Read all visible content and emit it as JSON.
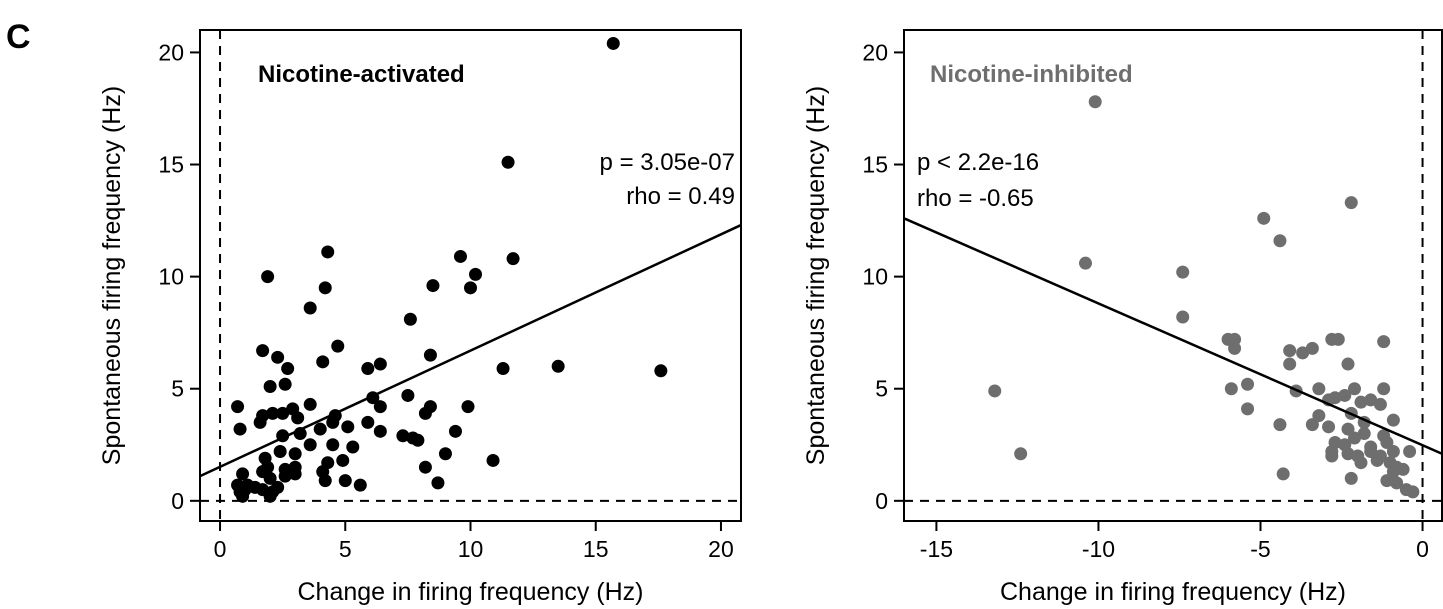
{
  "panel_label": "C",
  "chart_data": [
    {
      "type": "scatter",
      "title": "Nicotine-activated",
      "title_color": "#000000",
      "point_color": "#000000",
      "xlabel": "Change in firing frequency (Hz)",
      "ylabel": "Spontaneous firing frequency (Hz)",
      "xlim": [
        -0.8,
        20.8
      ],
      "ylim": [
        -0.9,
        21.0
      ],
      "xticks": [
        0,
        5,
        10,
        15,
        20
      ],
      "xtick_labels": [
        "0",
        "5",
        "10",
        "15",
        "20"
      ],
      "yticks": [
        0,
        5,
        10,
        15,
        20
      ],
      "ytick_labels": [
        "0",
        "5",
        "10",
        "15",
        "20"
      ],
      "reference_lines": {
        "x": 0,
        "y": 0,
        "style": "dashed"
      },
      "regression_line": {
        "x": [
          -0.8,
          20.8
        ],
        "y": [
          1.1,
          12.3
        ]
      },
      "stats": {
        "p": "p =  3.05e-07",
        "rho": "rho = 0.49"
      },
      "legend_position": "none",
      "grid": false,
      "points": [
        [
          15.7,
          20.4
        ],
        [
          11.5,
          15.1
        ],
        [
          4.3,
          11.1
        ],
        [
          9.6,
          10.9
        ],
        [
          10.2,
          10.1
        ],
        [
          11.7,
          10.8
        ],
        [
          1.9,
          10.0
        ],
        [
          4.2,
          9.5
        ],
        [
          8.5,
          9.6
        ],
        [
          10.0,
          9.5
        ],
        [
          3.6,
          8.6
        ],
        [
          7.6,
          8.1
        ],
        [
          4.7,
          6.9
        ],
        [
          1.7,
          6.7
        ],
        [
          2.3,
          6.4
        ],
        [
          4.1,
          6.2
        ],
        [
          6.4,
          6.1
        ],
        [
          8.4,
          6.5
        ],
        [
          11.3,
          5.9
        ],
        [
          13.5,
          6.0
        ],
        [
          17.6,
          5.8
        ],
        [
          2.7,
          5.9
        ],
        [
          5.9,
          5.9
        ],
        [
          2.0,
          5.1
        ],
        [
          2.6,
          5.2
        ],
        [
          6.1,
          4.6
        ],
        [
          7.5,
          4.7
        ],
        [
          0.7,
          4.2
        ],
        [
          1.7,
          3.8
        ],
        [
          2.9,
          4.1
        ],
        [
          3.6,
          4.3
        ],
        [
          4.6,
          3.8
        ],
        [
          6.4,
          4.2
        ],
        [
          8.4,
          4.2
        ],
        [
          9.9,
          4.2
        ],
        [
          0.8,
          3.2
        ],
        [
          1.6,
          3.5
        ],
        [
          2.1,
          3.9
        ],
        [
          2.5,
          3.9
        ],
        [
          3.1,
          3.7
        ],
        [
          4.0,
          3.2
        ],
        [
          4.5,
          3.5
        ],
        [
          5.1,
          3.3
        ],
        [
          5.9,
          3.5
        ],
        [
          8.2,
          3.9
        ],
        [
          7.3,
          2.9
        ],
        [
          7.7,
          2.8
        ],
        [
          9.4,
          3.1
        ],
        [
          2.5,
          2.9
        ],
        [
          3.2,
          3.0
        ],
        [
          3.6,
          2.5
        ],
        [
          4.5,
          2.5
        ],
        [
          5.3,
          2.4
        ],
        [
          6.4,
          3.1
        ],
        [
          7.9,
          2.7
        ],
        [
          1.8,
          1.9
        ],
        [
          2.4,
          2.2
        ],
        [
          3.0,
          2.1
        ],
        [
          4.3,
          1.7
        ],
        [
          4.9,
          1.8
        ],
        [
          9.0,
          2.1
        ],
        [
          10.9,
          1.8
        ],
        [
          1.9,
          1.5
        ],
        [
          2.6,
          1.4
        ],
        [
          3.0,
          1.5
        ],
        [
          4.1,
          1.3
        ],
        [
          8.2,
          1.5
        ],
        [
          0.9,
          1.2
        ],
        [
          1.7,
          1.3
        ],
        [
          2.0,
          1.0
        ],
        [
          2.6,
          1.1
        ],
        [
          3.0,
          1.2
        ],
        [
          4.2,
          0.9
        ],
        [
          5.0,
          0.9
        ],
        [
          5.6,
          0.7
        ],
        [
          8.7,
          0.8
        ],
        [
          0.7,
          0.7
        ],
        [
          1.1,
          0.7
        ],
        [
          1.4,
          0.6
        ],
        [
          1.7,
          0.5
        ],
        [
          2.3,
          0.6
        ],
        [
          0.8,
          0.4
        ],
        [
          1.0,
          0.5
        ],
        [
          2.1,
          0.4
        ],
        [
          0.9,
          0.2
        ],
        [
          2.0,
          0.2
        ]
      ]
    },
    {
      "type": "scatter",
      "title": "Nicotine-inhibited",
      "title_color": "#6e6e6e",
      "point_color": "#6e6e6e",
      "xlabel": "Change in firing frequency (Hz)",
      "ylabel": "Spontaneous firing frequency (Hz)",
      "xlim": [
        -16.0,
        0.6
      ],
      "ylim": [
        -0.9,
        21.0
      ],
      "xticks": [
        -15,
        -10,
        -5,
        0
      ],
      "xtick_labels": [
        "-15",
        "-10",
        "-5",
        "0"
      ],
      "yticks": [
        0,
        5,
        10,
        15,
        20
      ],
      "ytick_labels": [
        "0",
        "5",
        "10",
        "15",
        "20"
      ],
      "reference_lines": {
        "x": 0,
        "y": 0,
        "style": "dashed"
      },
      "regression_line": {
        "x": [
          -16.0,
          0.6
        ],
        "y": [
          12.6,
          2.1
        ]
      },
      "stats": {
        "p": "p < 2.2e-16",
        "rho": "rho = -0.65"
      },
      "legend_position": "none",
      "grid": false,
      "points": [
        [
          -10.1,
          17.8
        ],
        [
          -2.2,
          13.3
        ],
        [
          -4.9,
          12.6
        ],
        [
          -4.4,
          11.6
        ],
        [
          -10.4,
          10.6
        ],
        [
          -7.4,
          10.2
        ],
        [
          -7.4,
          8.2
        ],
        [
          -6.0,
          7.2
        ],
        [
          -5.8,
          7.2
        ],
        [
          -5.8,
          6.8
        ],
        [
          -4.1,
          6.7
        ],
        [
          -3.7,
          6.6
        ],
        [
          -3.4,
          6.8
        ],
        [
          -2.8,
          7.2
        ],
        [
          -2.6,
          7.2
        ],
        [
          -1.2,
          7.1
        ],
        [
          -4.1,
          6.1
        ],
        [
          -2.3,
          6.1
        ],
        [
          -5.4,
          5.2
        ],
        [
          -5.9,
          5.0
        ],
        [
          -3.2,
          5.0
        ],
        [
          -2.1,
          5.0
        ],
        [
          -1.2,
          5.0
        ],
        [
          -13.2,
          4.9
        ],
        [
          -3.9,
          4.9
        ],
        [
          -2.9,
          4.5
        ],
        [
          -2.7,
          4.6
        ],
        [
          -2.4,
          4.7
        ],
        [
          -1.9,
          4.4
        ],
        [
          -1.6,
          4.5
        ],
        [
          -1.3,
          4.3
        ],
        [
          -0.9,
          3.6
        ],
        [
          -5.4,
          4.1
        ],
        [
          -3.2,
          3.8
        ],
        [
          -2.2,
          3.9
        ],
        [
          -1.8,
          3.5
        ],
        [
          -4.4,
          3.4
        ],
        [
          -3.4,
          3.4
        ],
        [
          -2.9,
          3.3
        ],
        [
          -2.3,
          3.2
        ],
        [
          -2.1,
          2.8
        ],
        [
          -1.8,
          3.0
        ],
        [
          -1.2,
          2.9
        ],
        [
          -2.7,
          2.6
        ],
        [
          -2.4,
          2.5
        ],
        [
          -1.6,
          2.4
        ],
        [
          -1.1,
          2.6
        ],
        [
          -2.8,
          2.2
        ],
        [
          -2.3,
          2.1
        ],
        [
          -2.0,
          2.0
        ],
        [
          -1.6,
          2.2
        ],
        [
          -1.3,
          2.0
        ],
        [
          -0.9,
          2.2
        ],
        [
          -0.4,
          2.2
        ],
        [
          -12.4,
          2.1
        ],
        [
          -2.8,
          2.0
        ],
        [
          -1.9,
          1.7
        ],
        [
          -1.4,
          1.8
        ],
        [
          -1.0,
          1.7
        ],
        [
          -0.8,
          1.5
        ],
        [
          -4.3,
          1.2
        ],
        [
          -0.9,
          1.3
        ],
        [
          -0.6,
          1.4
        ],
        [
          -2.2,
          1.0
        ],
        [
          -1.1,
          0.9
        ],
        [
          -0.8,
          0.8
        ],
        [
          -0.5,
          0.5
        ],
        [
          -0.3,
          0.4
        ]
      ]
    }
  ]
}
